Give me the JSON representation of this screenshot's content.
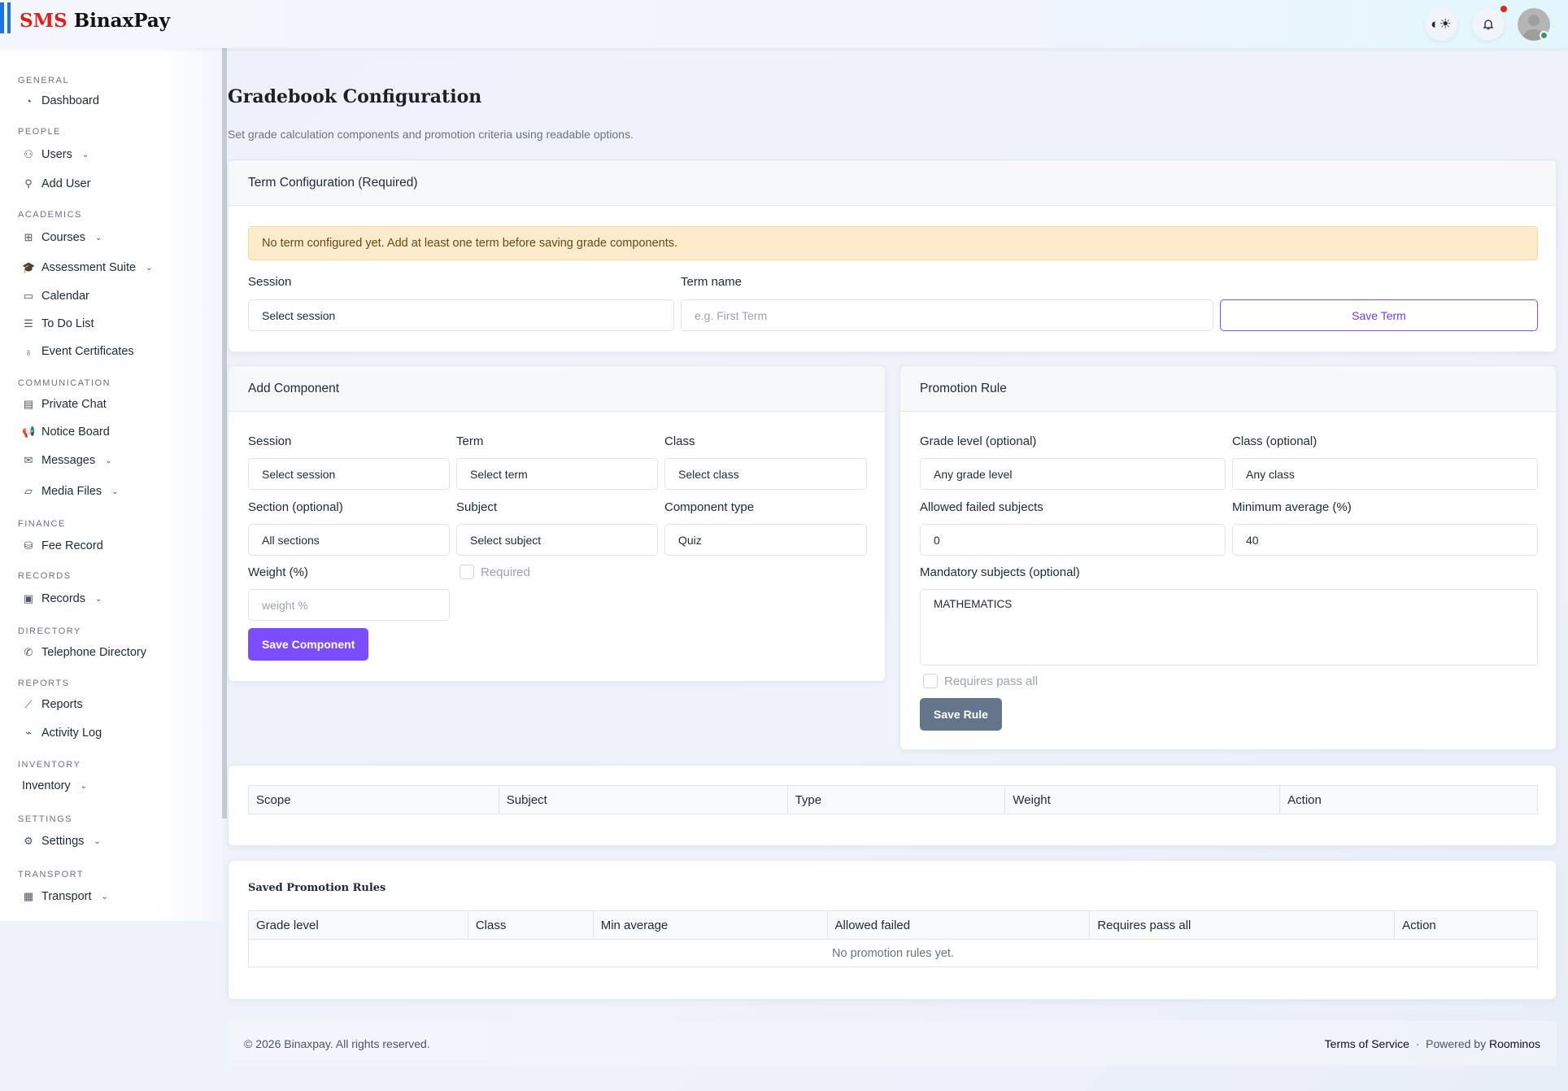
{
  "header": {
    "brand_red": "SMS",
    "brand_dark": "BinaxPay",
    "theme_icon": "contrast-sun-icon",
    "bell_icon": "bell-icon"
  },
  "sidebar": {
    "sections": [
      {
        "title": "GENERAL",
        "items": [
          {
            "label": "Dashboard",
            "icon": "gauge-icon"
          }
        ]
      },
      {
        "title": "PEOPLE",
        "items": [
          {
            "label": "Users",
            "icon": "users-icon",
            "chevron": true
          },
          {
            "label": "Add User",
            "icon": "user-plus-icon"
          }
        ]
      },
      {
        "title": "ACADEMICS",
        "items": [
          {
            "label": "Courses",
            "icon": "sitemap-icon",
            "chevron": true
          },
          {
            "label": "Assessment Suite",
            "icon": "graduation-cap-icon",
            "chevron": true
          },
          {
            "label": "Calendar",
            "icon": "calendar-icon"
          },
          {
            "label": "To Do List",
            "icon": "list-icon"
          },
          {
            "label": "Event Certificates",
            "icon": "award-icon"
          }
        ]
      },
      {
        "title": "COMMUNICATION",
        "items": [
          {
            "label": "Private Chat",
            "icon": "chat-icon"
          },
          {
            "label": "Notice Board",
            "icon": "megaphone-icon"
          },
          {
            "label": "Messages",
            "icon": "envelope-icon",
            "chevron": true
          },
          {
            "label": "Media Files",
            "icon": "folder-icon",
            "chevron": true
          }
        ]
      },
      {
        "title": "FINANCE",
        "items": [
          {
            "label": "Fee Record",
            "icon": "money-icon"
          }
        ]
      },
      {
        "title": "RECORDS",
        "items": [
          {
            "label": "Records",
            "icon": "archive-icon",
            "chevron": true
          }
        ]
      },
      {
        "title": "DIRECTORY",
        "items": [
          {
            "label": "Telephone Directory",
            "icon": "phone-icon"
          }
        ]
      },
      {
        "title": "REPORTS",
        "items": [
          {
            "label": "Reports",
            "icon": "chart-line-icon"
          },
          {
            "label": "Activity Log",
            "icon": "pulse-icon"
          }
        ]
      },
      {
        "title": "INVENTORY",
        "items": [
          {
            "label": "Inventory",
            "chevron": true
          }
        ]
      },
      {
        "title": "SETTINGS",
        "items": [
          {
            "label": "Settings",
            "icon": "gear-icon",
            "chevron": true
          }
        ]
      },
      {
        "title": "TRANSPORT",
        "items": [
          {
            "label": "Transport",
            "icon": "bus-icon",
            "chevron": true
          }
        ]
      }
    ]
  },
  "page": {
    "title": "Gradebook Configuration",
    "subtitle": "Set grade calculation components and promotion criteria using readable options."
  },
  "term": {
    "header": "Term Configuration (Required)",
    "alert": "No term configured yet. Add at least one term before saving grade components.",
    "session_label": "Session",
    "session_value": "Select session",
    "term_label": "Term name",
    "term_placeholder": "e.g. First Term",
    "save": "Save Term"
  },
  "component": {
    "header": "Add Component",
    "session_label": "Session",
    "session_value": "Select session",
    "term_label": "Term",
    "term_value": "Select term",
    "class_label": "Class",
    "class_value": "Select class",
    "section_label": "Section (optional)",
    "section_value": "All sections",
    "subject_label": "Subject",
    "subject_value": "Select subject",
    "type_label": "Component type",
    "type_value": "Quiz",
    "weight_label": "Weight (%)",
    "weight_placeholder": "weight %",
    "required_label": "Required",
    "save": "Save Component"
  },
  "promotion": {
    "header": "Promotion Rule",
    "grade_label": "Grade level (optional)",
    "grade_value": "Any grade level",
    "class_label": "Class (optional)",
    "class_value": "Any class",
    "failed_label": "Allowed failed subjects",
    "failed_value": "0",
    "avg_label": "Minimum average (%)",
    "avg_value": "40",
    "mandatory_label": "Mandatory subjects (optional)",
    "mandatory_value": "MATHEMATICS",
    "pass_all_label": "Requires pass all",
    "save": "Save Rule"
  },
  "components_table": {
    "columns": [
      "Scope",
      "Subject",
      "Type",
      "Weight",
      "Action"
    ]
  },
  "rules_table": {
    "title": "Saved Promotion Rules",
    "columns": [
      "Grade level",
      "Class",
      "Min average",
      "Allowed failed",
      "Requires pass all",
      "Action"
    ],
    "empty": "No promotion rules yet."
  },
  "footer": {
    "copyright": "© 2026 Binaxpay. All rights reserved.",
    "terms": "Terms of Service",
    "sep": "·",
    "powered": "Powered by",
    "powered_by": "Roominos"
  },
  "colors": {
    "primary": "#7c4dff",
    "secondary": "#64748b",
    "alert_bg": "#fdebcc",
    "brand_red": "#e0201b"
  }
}
